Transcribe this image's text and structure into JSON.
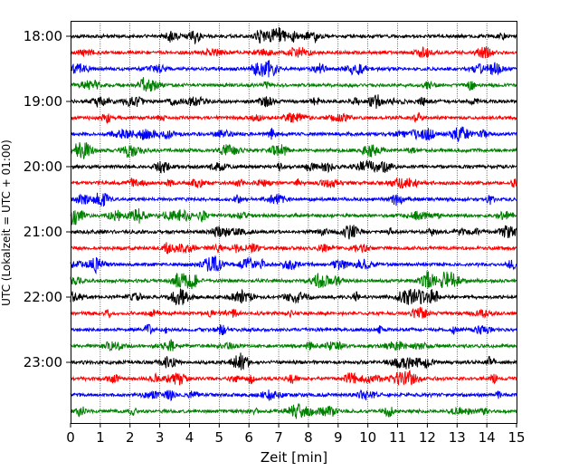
{
  "chart_data": {
    "type": "line",
    "title": "",
    "xlabel": "Zeit  [min]",
    "ylabel": "UTC (Lokalzeit = UTC + 01:00)",
    "xlim": [
      0,
      15
    ],
    "x_ticks": [
      "0",
      "1",
      "2",
      "3",
      "4",
      "5",
      "6",
      "7",
      "8",
      "9",
      "10",
      "11",
      "12",
      "13",
      "14",
      "15"
    ],
    "y_tick_labels": [
      "18:00",
      "19:00",
      "20:00",
      "21:00",
      "22:00",
      "23:00"
    ],
    "grid": "vertical dotted at each minute",
    "trace_interval_minutes": 15,
    "trace_colors": [
      "#000000",
      "#ff0000",
      "#0000ff",
      "#008000"
    ],
    "series": [
      {
        "start": "18:00",
        "color": "#000000"
      },
      {
        "start": "18:15",
        "color": "#ff0000"
      },
      {
        "start": "18:30",
        "color": "#0000ff"
      },
      {
        "start": "18:45",
        "color": "#008000"
      },
      {
        "start": "19:00",
        "color": "#000000"
      },
      {
        "start": "19:15",
        "color": "#ff0000"
      },
      {
        "start": "19:30",
        "color": "#0000ff"
      },
      {
        "start": "19:45",
        "color": "#008000"
      },
      {
        "start": "20:00",
        "color": "#000000"
      },
      {
        "start": "20:15",
        "color": "#ff0000"
      },
      {
        "start": "20:30",
        "color": "#0000ff"
      },
      {
        "start": "20:45",
        "color": "#008000"
      },
      {
        "start": "21:00",
        "color": "#000000"
      },
      {
        "start": "21:15",
        "color": "#ff0000"
      },
      {
        "start": "21:30",
        "color": "#0000ff"
      },
      {
        "start": "21:45",
        "color": "#008000"
      },
      {
        "start": "22:00",
        "color": "#000000"
      },
      {
        "start": "22:15",
        "color": "#ff0000"
      },
      {
        "start": "22:30",
        "color": "#0000ff"
      },
      {
        "start": "22:45",
        "color": "#008000"
      },
      {
        "start": "23:00",
        "color": "#000000"
      },
      {
        "start": "23:15",
        "color": "#ff0000"
      },
      {
        "start": "23:30",
        "color": "#0000ff"
      },
      {
        "start": "23:45",
        "color": "#008000"
      }
    ]
  }
}
